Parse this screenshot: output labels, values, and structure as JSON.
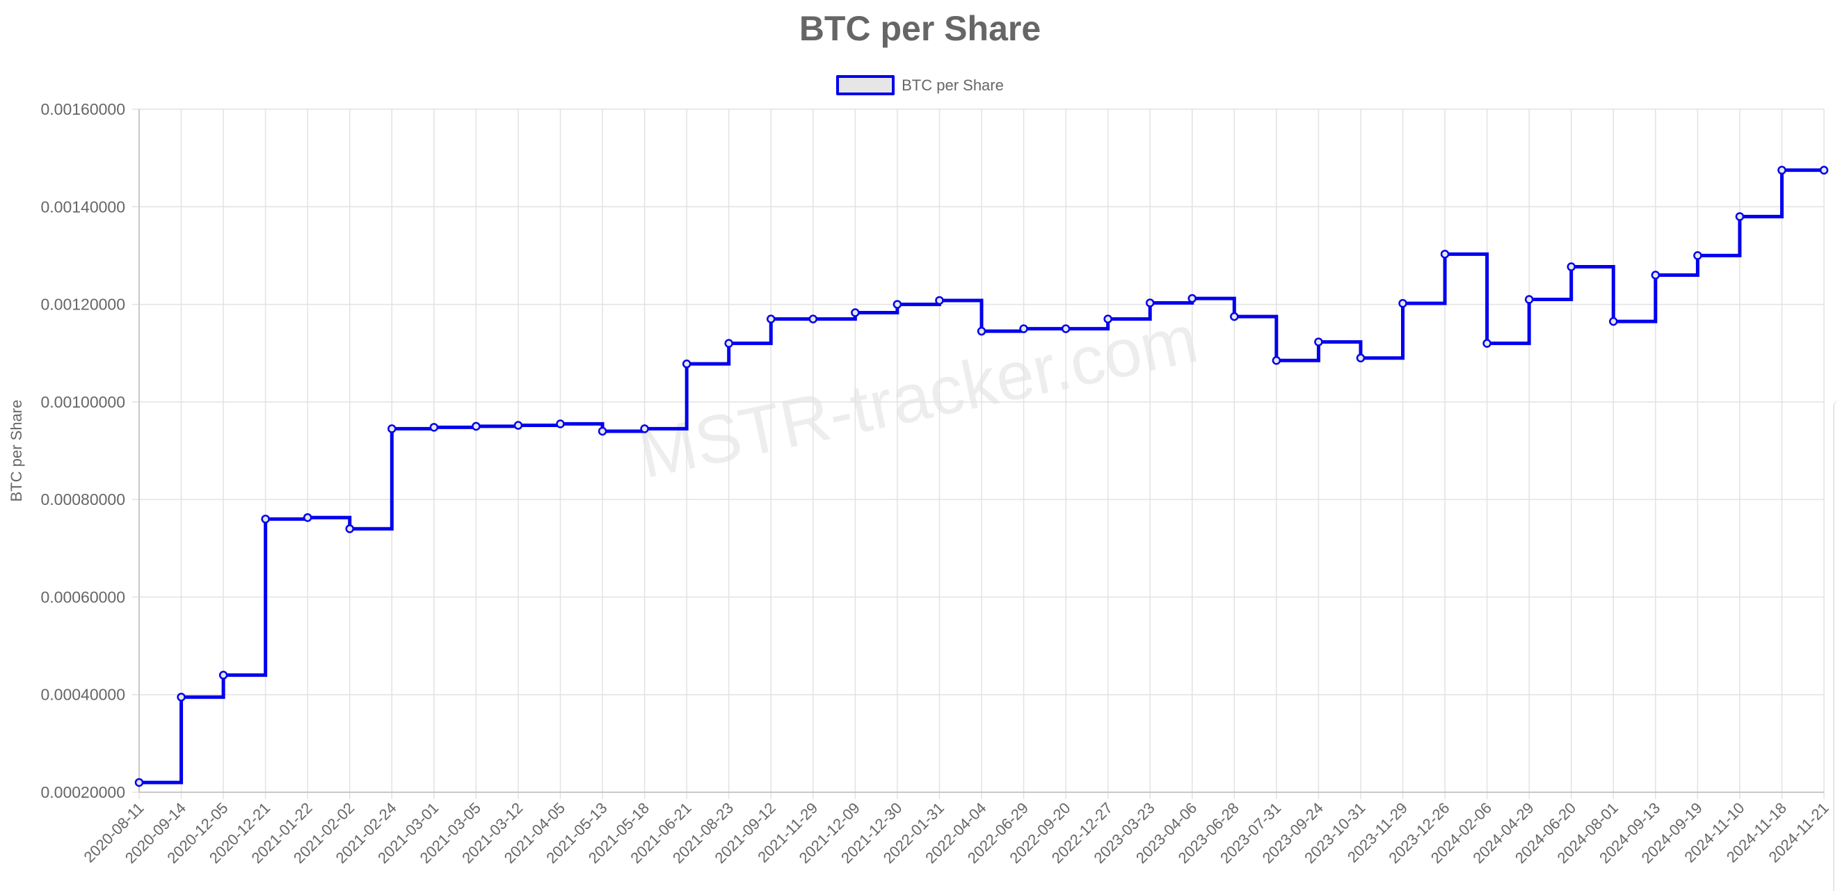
{
  "chart_data": {
    "type": "line",
    "title": "BTC per Share",
    "ylabel": "BTC per Share",
    "xlabel": "",
    "ylim": [
      0.0002,
      0.0016
    ],
    "y_ticks": [
      "0.00020000",
      "0.00040000",
      "0.00060000",
      "0.00080000",
      "0.00100000",
      "0.00120000",
      "0.00140000",
      "0.00160000"
    ],
    "legend": "top-center",
    "grid": true,
    "stepped": true,
    "categories": [
      "2020-08-11",
      "2020-09-14",
      "2020-12-05",
      "2020-12-21",
      "2021-01-22",
      "2021-02-02",
      "2021-02-24",
      "2021-03-01",
      "2021-03-05",
      "2021-03-12",
      "2021-04-05",
      "2021-05-13",
      "2021-05-18",
      "2021-06-21",
      "2021-08-23",
      "2021-09-12",
      "2021-11-29",
      "2021-12-09",
      "2021-12-30",
      "2022-01-31",
      "2022-04-04",
      "2022-06-29",
      "2022-09-20",
      "2022-12-27",
      "2023-03-23",
      "2023-04-06",
      "2023-06-28",
      "2023-07-31",
      "2023-09-24",
      "2023-10-31",
      "2023-11-29",
      "2023-12-26",
      "2024-02-06",
      "2024-04-29",
      "2024-06-20",
      "2024-08-01",
      "2024-09-13",
      "2024-09-19",
      "2024-11-10",
      "2024-11-18",
      "2024-11-21"
    ],
    "series": [
      {
        "name": "BTC per Share",
        "color": "#0000ee",
        "fill": "#e6e6e6",
        "values": [
          0.00022,
          0.000395,
          0.00044,
          0.00076,
          0.000763,
          0.00074,
          0.000945,
          0.000948,
          0.00095,
          0.000952,
          0.000955,
          0.00094,
          0.000945,
          0.001078,
          0.00112,
          0.00117,
          0.00117,
          0.001183,
          0.0012,
          0.001208,
          0.001145,
          0.00115,
          0.00115,
          0.00117,
          0.001203,
          0.001212,
          0.001175,
          0.001085,
          0.001123,
          0.00109,
          0.001202,
          0.001303,
          0.00112,
          0.00121,
          0.001277,
          0.001165,
          0.00126,
          0.0013,
          0.00138,
          0.001475,
          0.001475
        ]
      }
    ]
  },
  "watermark": "MSTR-tracker.com"
}
